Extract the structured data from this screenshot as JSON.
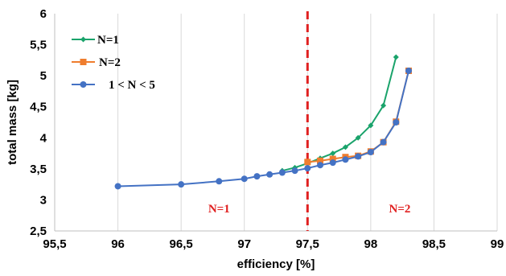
{
  "chart_data": {
    "type": "line",
    "xlabel": "efficiency [%]",
    "ylabel": "total mass [kg]",
    "xlim": [
      95.5,
      99
    ],
    "ylim": [
      2.5,
      6
    ],
    "xticks": [
      "95,5",
      "96",
      "96,5",
      "97",
      "97,5",
      "98",
      "98,5",
      "99"
    ],
    "yticks": [
      "2,5",
      "3",
      "3,5",
      "4",
      "4,5",
      "5",
      "5,5",
      "6"
    ],
    "grid": "vertical",
    "legend_position": "top-left",
    "series": [
      {
        "name": "N=1",
        "color": "#1aa36b",
        "marker": "diamond",
        "x": [
          97.3,
          97.4,
          97.5,
          97.6,
          97.7,
          97.8,
          97.9,
          98.0,
          98.1,
          98.2
        ],
        "y": [
          3.47,
          3.52,
          3.59,
          3.67,
          3.75,
          3.85,
          4.0,
          4.2,
          4.52,
          5.3
        ]
      },
      {
        "name": "N=2",
        "color": "#ef7d2e",
        "marker": "square",
        "x": [
          97.5,
          97.6,
          97.7,
          97.8,
          97.9,
          98.0,
          98.1,
          98.2,
          98.3
        ],
        "y": [
          3.61,
          3.63,
          3.66,
          3.69,
          3.71,
          3.78,
          3.93,
          4.26,
          5.08
        ]
      },
      {
        "name": "1 < N < 5",
        "color": "#4472c4",
        "marker": "circle",
        "x": [
          96.0,
          96.5,
          96.8,
          97.0,
          97.1,
          97.2,
          97.3,
          97.4,
          97.5,
          97.6,
          97.7,
          97.8,
          97.9,
          98.0,
          98.1,
          98.2,
          98.3
        ],
        "y": [
          3.22,
          3.25,
          3.3,
          3.34,
          3.38,
          3.41,
          3.44,
          3.47,
          3.51,
          3.56,
          3.6,
          3.65,
          3.7,
          3.77,
          3.93,
          4.25,
          5.08
        ]
      }
    ],
    "annotations": {
      "threshold_x": 97.5,
      "threshold_color": "#e02020",
      "left_region_label": "N=1",
      "right_region_label": "N=2",
      "left_region_pos": [
        96.8,
        2.8
      ],
      "right_region_pos": [
        98.23,
        2.8
      ]
    }
  }
}
